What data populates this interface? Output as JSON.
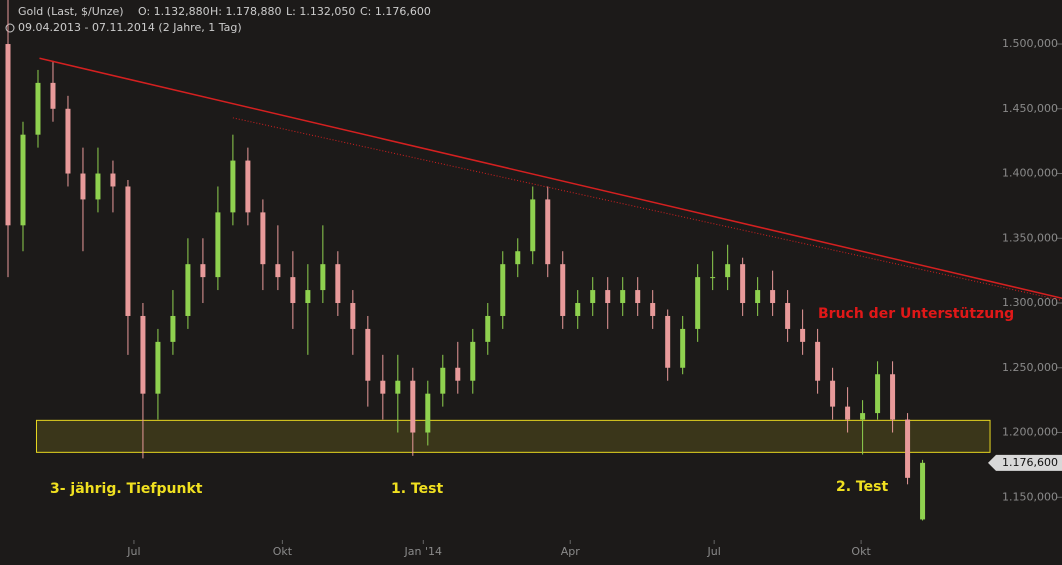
{
  "chart_data": {
    "type": "candlestick",
    "title": "Gold (Last, $/Unze)",
    "ohlc_labels": [
      "O: 1.132,880",
      "H: 1.178,880",
      "L: 1.132,050",
      "C: 1.176,600"
    ],
    "subtitle": "09.04.2013 - 07.11.2014 (2 Jahre, 1 Tag)",
    "up_color": "#8fd14f",
    "down_color": "#e89a9a",
    "xlim": [
      -0.2,
      70.3
    ],
    "xticks": [
      {
        "value": 8.4,
        "label": "Jul"
      },
      {
        "value": 18.3,
        "label": "Okt"
      },
      {
        "value": 27.7,
        "label": "Jan '14"
      },
      {
        "value": 37.5,
        "label": "Apr"
      },
      {
        "value": 47.1,
        "label": "Jul"
      },
      {
        "value": 56.9,
        "label": "Okt"
      }
    ],
    "ylim": [
      1117000,
      1534000
    ],
    "yticks": [
      {
        "value": 1150000,
        "label": "1.150,000"
      },
      {
        "value": 1200000,
        "label": "1.200,000"
      },
      {
        "value": 1250000,
        "label": "1.250,000"
      },
      {
        "value": 1300000,
        "label": "1.300,000"
      },
      {
        "value": 1350000,
        "label": "1.350,000"
      },
      {
        "value": 1400000,
        "label": "1.400,000"
      },
      {
        "value": 1450000,
        "label": "1.450,000"
      },
      {
        "value": 1500000,
        "label": "1.500,000"
      }
    ],
    "last_price": {
      "value": 1176600,
      "label": "1.176,600"
    },
    "open": [
      1500000,
      1360000,
      1430000,
      1470000,
      1450000,
      1400000,
      1380000,
      1400000,
      1390000,
      1290000,
      1230000,
      1270000,
      1290000,
      1330000,
      1320000,
      1370000,
      1410000,
      1370000,
      1330000,
      1320000,
      1300000,
      1310000,
      1330000,
      1300000,
      1280000,
      1240000,
      1230000,
      1240000,
      1200000,
      1230000,
      1250000,
      1240000,
      1270000,
      1290000,
      1330000,
      1340000,
      1380000,
      1330000,
      1290000,
      1300000,
      1310000,
      1300000,
      1310000,
      1300000,
      1290000,
      1250000,
      1280000,
      1320000,
      1320000,
      1330000,
      1300000,
      1310000,
      1300000,
      1280000,
      1270000,
      1240000,
      1220000,
      1210000,
      1215000,
      1245000,
      1210000,
      1132880
    ],
    "high": [
      1534000,
      1440000,
      1480000,
      1487000,
      1460000,
      1420000,
      1420000,
      1410000,
      1395000,
      1300000,
      1280000,
      1310000,
      1350000,
      1350000,
      1390000,
      1430000,
      1420000,
      1380000,
      1360000,
      1340000,
      1330000,
      1360000,
      1340000,
      1310000,
      1290000,
      1260000,
      1260000,
      1250000,
      1240000,
      1260000,
      1270000,
      1280000,
      1300000,
      1340000,
      1350000,
      1390000,
      1390000,
      1340000,
      1310000,
      1320000,
      1320000,
      1320000,
      1320000,
      1310000,
      1295000,
      1290000,
      1330000,
      1340000,
      1345000,
      1335000,
      1320000,
      1325000,
      1310000,
      1295000,
      1280000,
      1250000,
      1235000,
      1225000,
      1255000,
      1255000,
      1215000,
      1178880
    ],
    "low": [
      1320000,
      1340000,
      1420000,
      1440000,
      1390000,
      1340000,
      1370000,
      1370000,
      1260000,
      1180000,
      1210000,
      1260000,
      1280000,
      1300000,
      1310000,
      1360000,
      1360000,
      1310000,
      1310000,
      1280000,
      1260000,
      1300000,
      1290000,
      1260000,
      1220000,
      1210000,
      1200000,
      1182000,
      1190000,
      1220000,
      1230000,
      1230000,
      1260000,
      1280000,
      1320000,
      1330000,
      1320000,
      1280000,
      1280000,
      1290000,
      1280000,
      1290000,
      1290000,
      1280000,
      1240000,
      1245000,
      1270000,
      1310000,
      1310000,
      1290000,
      1290000,
      1290000,
      1270000,
      1260000,
      1230000,
      1210000,
      1200000,
      1183000,
      1210000,
      1200000,
      1160000,
      1132050
    ],
    "close": [
      1360000,
      1430000,
      1470000,
      1450000,
      1400000,
      1380000,
      1400000,
      1390000,
      1290000,
      1230000,
      1270000,
      1290000,
      1330000,
      1320000,
      1370000,
      1410000,
      1370000,
      1330000,
      1320000,
      1300000,
      1310000,
      1330000,
      1300000,
      1280000,
      1240000,
      1230000,
      1240000,
      1200000,
      1230000,
      1250000,
      1240000,
      1270000,
      1290000,
      1330000,
      1340000,
      1380000,
      1330000,
      1290000,
      1300000,
      1310000,
      1300000,
      1310000,
      1300000,
      1290000,
      1250000,
      1280000,
      1320000,
      1320000,
      1330000,
      1300000,
      1310000,
      1300000,
      1280000,
      1270000,
      1240000,
      1220000,
      1210000,
      1215000,
      1245000,
      1210000,
      1165000,
      1176600
    ],
    "trendlines": [
      {
        "color": "#d42020",
        "style": "solid",
        "x": [
          2.1,
          70.3
        ],
        "y": [
          1489000,
          1303700
        ]
      },
      {
        "color": "#d42020",
        "style": "dotted",
        "x": [
          15,
          70.3
        ],
        "y": [
          1443000,
          1302000
        ]
      }
    ],
    "zone": {
      "color": "#e8d820",
      "x": [
        1.9,
        65.5
      ],
      "y": [
        1184700,
        1209400
      ]
    },
    "annotations": [
      {
        "text": "3- jährig. Tiefpunkt",
        "color": "#f0e020"
      },
      {
        "text": "1. Test",
        "color": "#f0e020"
      },
      {
        "text": "2. Test",
        "color": "#f0e020"
      },
      {
        "text": "Bruch der Unterstützung",
        "color": "#e01818"
      }
    ]
  }
}
